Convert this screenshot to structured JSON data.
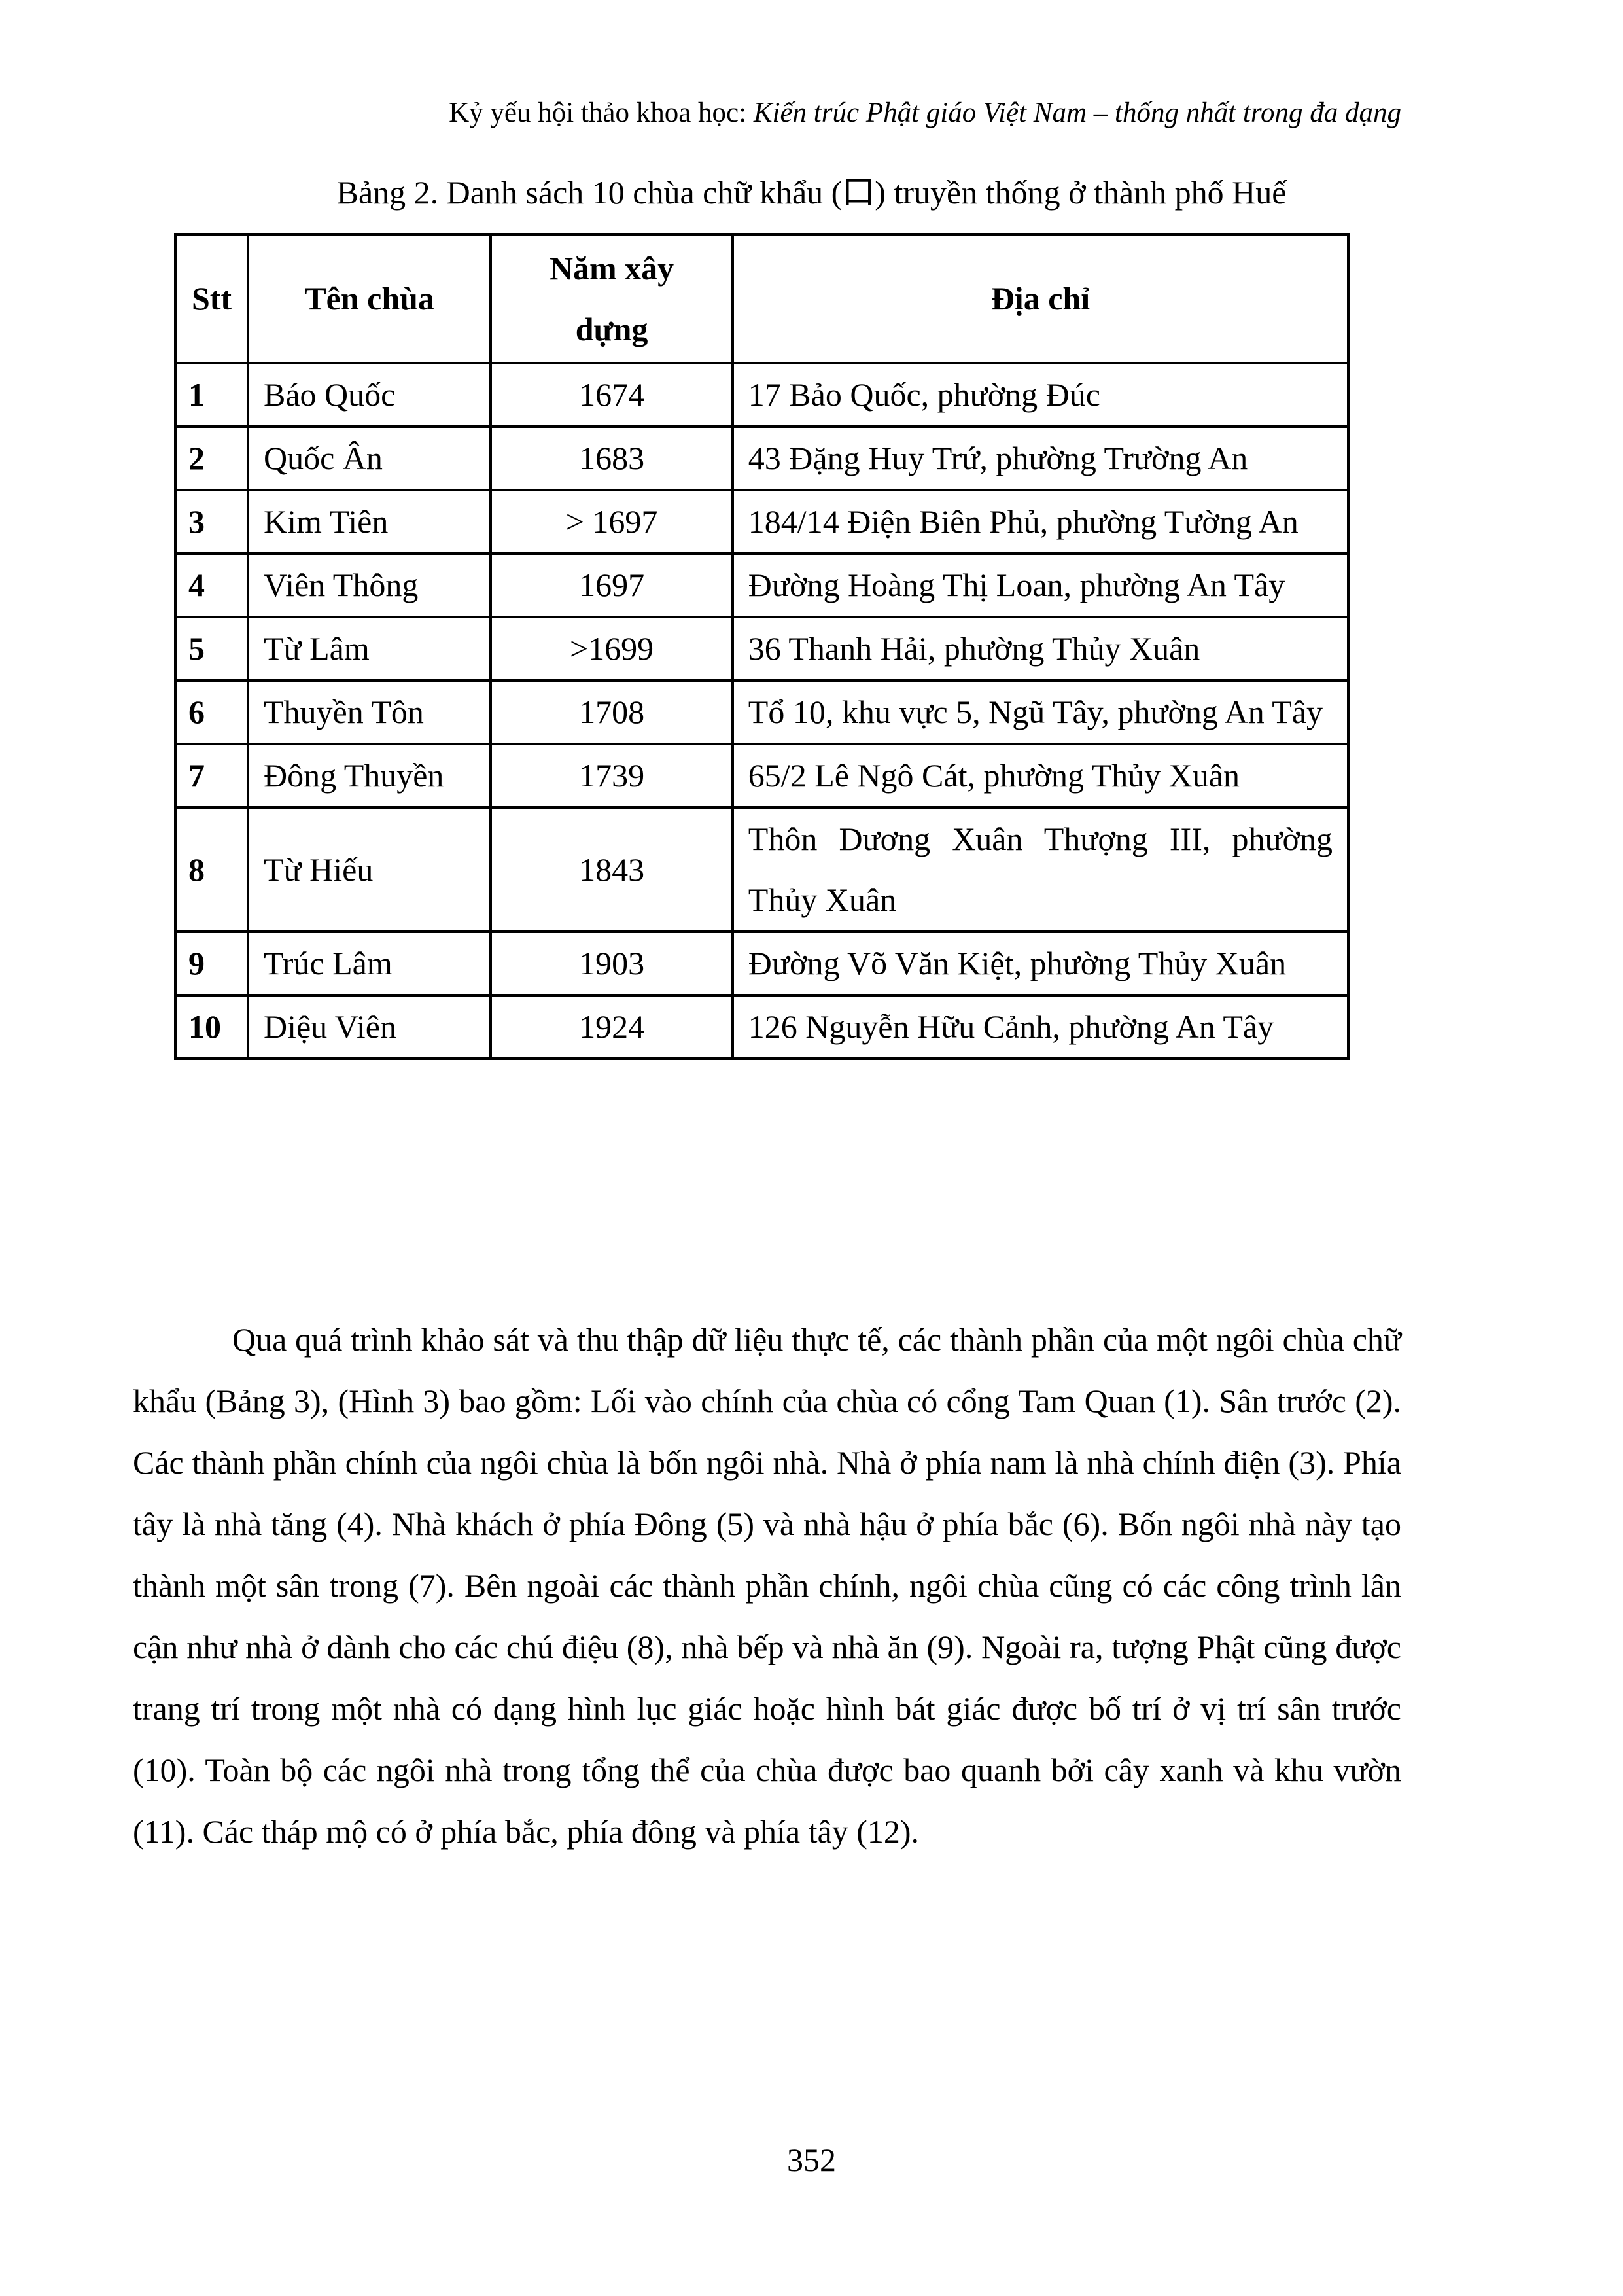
{
  "header": {
    "prefix": "Kỷ yếu hội thảo khoa học: ",
    "title_italic": "Kiến trúc Phật giáo Việt Nam – thống nhất trong đa dạng"
  },
  "caption": "Bảng 2. Danh sách 10 chùa chữ khẩu (口) truyền thống ở thành phố Huế",
  "table": {
    "headers": [
      "Stt",
      "Tên chùa",
      "Năm xây dựng",
      "Địa chỉ"
    ],
    "rows": [
      {
        "stt": "1",
        "name": "Báo Quốc",
        "year": "1674",
        "address": "17 Bảo Quốc, phường Đúc"
      },
      {
        "stt": "2",
        "name": "Quốc Ân",
        "year": "1683",
        "address": "43 Đặng Huy Trứ, phường Trường An"
      },
      {
        "stt": "3",
        "name": "Kim Tiên",
        "year": "> 1697",
        "address": "184/14 Điện Biên Phủ, phường Tường An"
      },
      {
        "stt": "4",
        "name": "Viên Thông",
        "year": "1697",
        "address": "Đường Hoàng Thị Loan, phường An Tây"
      },
      {
        "stt": "5",
        "name": "Từ Lâm",
        "year": ">1699",
        "address": "36 Thanh Hải, phường Thủy Xuân"
      },
      {
        "stt": "6",
        "name": "Thuyền Tôn",
        "year": "1708",
        "address": "Tổ 10, khu vực 5, Ngũ Tây, phường An Tây"
      },
      {
        "stt": "7",
        "name": "Đông Thuyền",
        "year": "1739",
        "address": "65/2 Lê Ngô Cát, phường Thủy Xuân"
      },
      {
        "stt": "8",
        "name": "Từ Hiếu",
        "year": "1843",
        "address": "Thôn Dương Xuân Thượng III, phường Thủy Xuân"
      },
      {
        "stt": "9",
        "name": "Trúc Lâm",
        "year": "1903",
        "address": "Đường Võ Văn Kiệt, phường Thủy Xuân"
      },
      {
        "stt": "10",
        "name": "Diệu Viên",
        "year": "1924",
        "address": "126 Nguyễn Hữu Cảnh, phường An Tây"
      }
    ]
  },
  "paragraph": "Qua quá trình khảo sát và thu thập dữ liệu thực tế, các thành phần của một ngôi chùa chữ khẩu (Bảng 3), (Hình 3) bao gồm: Lối vào chính của chùa có cổng Tam Quan (1). Sân trước (2). Các thành phần chính của ngôi chùa là bốn ngôi nhà. Nhà ở phía nam là nhà chính điện (3). Phía tây là nhà tăng (4). Nhà khách ở phía Đông (5) và nhà hậu ở phía bắc (6). Bốn ngôi nhà này tạo thành một sân trong (7). Bên ngoài các thành phần chính, ngôi chùa cũng có các công trình lân cận như nhà ở dành cho các chú điệu (8), nhà bếp và nhà ăn (9). Ngoài ra, tượng Phật cũng được trang trí trong một nhà có dạng hình lục giác hoặc hình bát giác được bố trí ở vị trí sân trước (10). Toàn bộ các ngôi nhà trong tổng thể của chùa được bao quanh bởi cây xanh và khu vườn (11). Các tháp mộ có ở phía bắc, phía đông và phía tây (12).",
  "page_number": "352"
}
